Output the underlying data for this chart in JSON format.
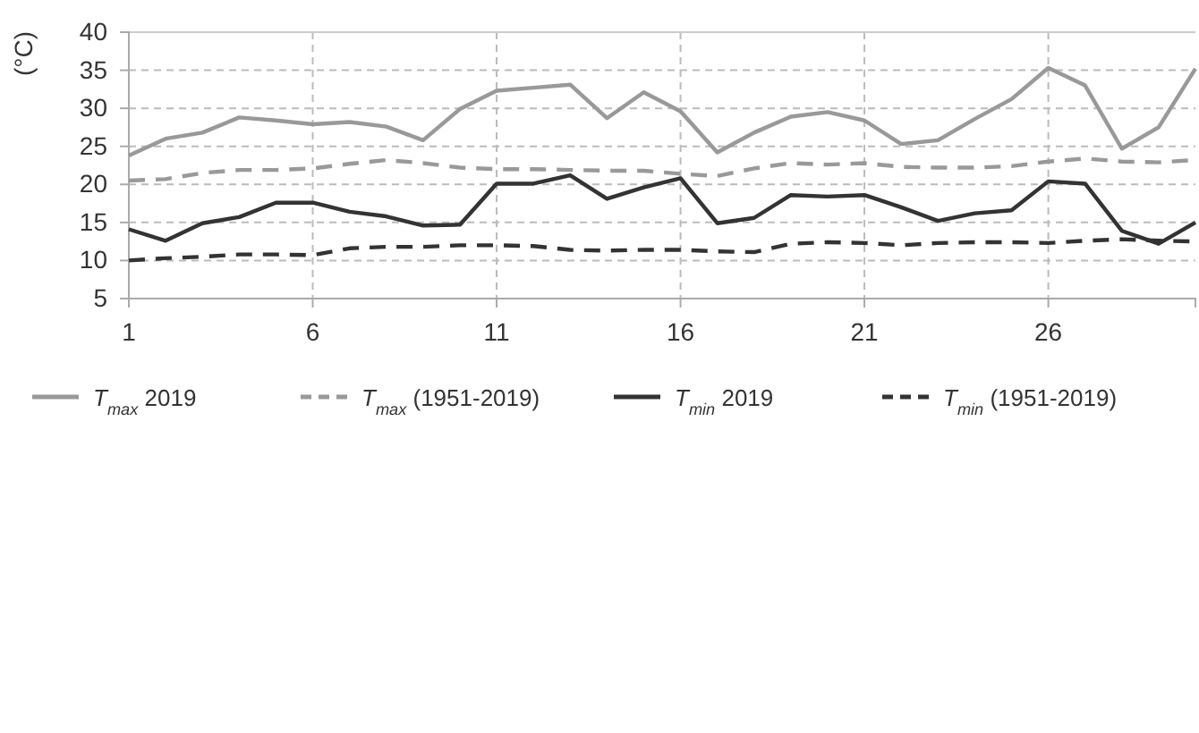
{
  "chart_data": {
    "type": "line",
    "ylabel": "(°C)",
    "x": [
      1,
      2,
      3,
      4,
      5,
      6,
      7,
      8,
      9,
      10,
      11,
      12,
      13,
      14,
      15,
      16,
      17,
      18,
      19,
      20,
      21,
      22,
      23,
      24,
      25,
      26,
      27,
      28,
      29,
      30
    ],
    "xlim": [
      1,
      30
    ],
    "xticks": [
      1,
      6,
      11,
      16,
      21,
      26
    ],
    "ylim": [
      5,
      40
    ],
    "yticks": [
      5,
      10,
      15,
      20,
      25,
      30,
      35,
      40
    ],
    "grid": true,
    "legend": "bottom",
    "marker": "none",
    "series": [
      {
        "name": "T$_{max}$ 2019",
        "color": "#999999",
        "line_style": "solid",
        "values": [
          23.8,
          26,
          26.8,
          28.8,
          28.4,
          27.9,
          28.2,
          27.6,
          25.8,
          29.9,
          32.3,
          32.7,
          33.1,
          28.7,
          32.1,
          29.6,
          24.2,
          26.8,
          28.9,
          29.5,
          28.4,
          25.3,
          25.8,
          28.6,
          31.2,
          35.3,
          33,
          24.7,
          27.5,
          35.2
        ]
      },
      {
        "name": "T$_{max}$ (1951-2019)",
        "color": "#999999",
        "line_style": "dashed",
        "values": [
          20.5,
          20.7,
          21.5,
          21.9,
          21.9,
          22.1,
          22.7,
          23.2,
          22.8,
          22.2,
          22,
          22,
          21.9,
          21.8,
          21.8,
          21.4,
          21.1,
          22.1,
          22.8,
          22.6,
          22.8,
          22.3,
          22.2,
          22.2,
          22.4,
          23,
          23.4,
          23,
          22.9,
          23.2
        ]
      },
      {
        "name": "T$_{min}$ 2019",
        "color": "#333333",
        "line_style": "solid",
        "values": [
          14.1,
          12.6,
          14.9,
          15.7,
          17.6,
          17.6,
          16.4,
          15.8,
          14.6,
          14.7,
          20.1,
          20.1,
          21.2,
          18.1,
          19.6,
          20.8,
          14.9,
          15.6,
          18.6,
          18.4,
          18.6,
          17,
          15.2,
          16.2,
          16.6,
          20.4,
          20.1,
          13.9,
          12.2,
          15
        ]
      },
      {
        "name": "T$_{min}$ (1951-2019)",
        "color": "#333333",
        "line_style": "dashed",
        "values": [
          10,
          10.3,
          10.5,
          10.8,
          10.8,
          10.7,
          11.6,
          11.8,
          11.8,
          12,
          12,
          11.9,
          11.4,
          11.3,
          11.4,
          11.4,
          11.2,
          11.1,
          12.2,
          12.4,
          12.3,
          12,
          12.3,
          12.4,
          12.4,
          12.3,
          12.6,
          12.8,
          12.6,
          12.5
        ]
      }
    ]
  }
}
